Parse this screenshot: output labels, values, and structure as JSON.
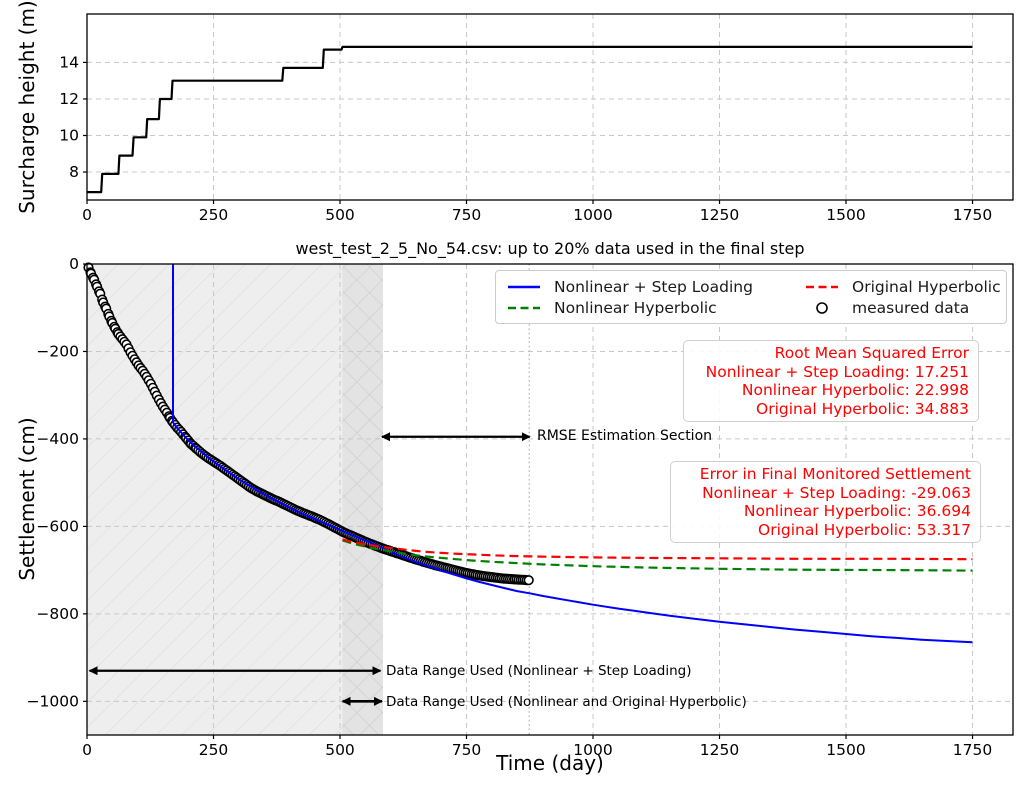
{
  "chart_data": [
    {
      "id": "surcharge",
      "type": "line",
      "title": "",
      "xlabel": "",
      "ylabel": "Surcharge height (m)",
      "xlim": [
        0,
        1830
      ],
      "ylim": [
        6.47,
        16.65
      ],
      "grid": true,
      "xticks": [
        {
          "value": 0,
          "label": "0"
        },
        {
          "value": 250,
          "label": "250"
        },
        {
          "value": 500,
          "label": "500"
        },
        {
          "value": 750,
          "label": "750"
        },
        {
          "value": 1000,
          "label": "1000"
        },
        {
          "value": 1250,
          "label": "1250"
        },
        {
          "value": 1500,
          "label": "1500"
        },
        {
          "value": 1750,
          "label": "1750"
        }
      ],
      "yticks": [
        {
          "value": 8,
          "label": "8"
        },
        {
          "value": 10,
          "label": "10"
        },
        {
          "value": 12,
          "label": "12"
        },
        {
          "value": 14,
          "label": "14"
        }
      ],
      "series": [
        {
          "name": "Surcharge height",
          "type": "line",
          "color": "#000000",
          "dash": "solid",
          "width": 2.2,
          "points": [
            [
              0,
              6.9
            ],
            [
              28,
              6.9
            ],
            [
              30,
              7.9
            ],
            [
              62,
              7.9
            ],
            [
              64,
              8.9
            ],
            [
              90,
              8.9
            ],
            [
              92,
              9.9
            ],
            [
              117,
              9.9
            ],
            [
              119,
              10.9
            ],
            [
              142,
              10.9
            ],
            [
              144,
              12.0
            ],
            [
              167,
              12.0
            ],
            [
              169,
              13.0
            ],
            [
              386,
              13.0
            ],
            [
              388,
              13.7
            ],
            [
              466,
              13.7
            ],
            [
              468,
              14.7
            ],
            [
              503,
              14.7
            ],
            [
              505,
              14.85
            ],
            [
              1750,
              14.85
            ]
          ]
        }
      ]
    },
    {
      "id": "settlement",
      "type": "line+scatter",
      "title": "west_test_2_5_No_54.csv: up to 20% data used in the final step",
      "xlabel": "Time (day)",
      "ylabel": "Settlement (cm)",
      "xlim": [
        0,
        1830
      ],
      "ylim": [
        -1077,
        0
      ],
      "grid": true,
      "xticks": [
        {
          "value": 0,
          "label": "0"
        },
        {
          "value": 250,
          "label": "250"
        },
        {
          "value": 500,
          "label": "500"
        },
        {
          "value": 750,
          "label": "750"
        },
        {
          "value": 1000,
          "label": "1000"
        },
        {
          "value": 1250,
          "label": "1250"
        },
        {
          "value": 1500,
          "label": "1500"
        },
        {
          "value": 1750,
          "label": "1750"
        }
      ],
      "yticks": [
        {
          "value": 0,
          "label": "0"
        },
        {
          "value": -200,
          "label": "−200"
        },
        {
          "value": -400,
          "label": "−400"
        },
        {
          "value": -600,
          "label": "−600"
        },
        {
          "value": -800,
          "label": "−800"
        },
        {
          "value": -1000,
          "label": "−1000"
        }
      ],
      "spans": [
        {
          "x0": 0,
          "x1": 585,
          "fill": "#eeeeee",
          "hatch": "slash"
        },
        {
          "x0": 505,
          "x1": 585,
          "fill": "#e3e3e3",
          "hatch": "cross"
        }
      ],
      "vlines": [
        {
          "x": 874,
          "color": "#b0b0b0",
          "style": "dotted"
        }
      ],
      "legend": [
        {
          "label": "Nonlinear + Step Loading",
          "color": "#0000ff",
          "dash": "solid",
          "marker": "line"
        },
        {
          "label": "Original Hyperbolic",
          "color": "#ff0000",
          "dash": "dashed",
          "marker": "line"
        },
        {
          "label": "Nonlinear Hyperbolic",
          "color": "#008000",
          "dash": "dashed",
          "marker": "line"
        },
        {
          "label": "measured data",
          "color": "#000000",
          "dash": "none",
          "marker": "circle"
        }
      ],
      "series": [
        {
          "name": "measured data",
          "type": "scatter",
          "color": "#000000",
          "fill": "#ffffff",
          "points": [
            [
              3,
              -8
            ],
            [
              8,
              -22
            ],
            [
              14,
              -36
            ],
            [
              20,
              -52
            ],
            [
              26,
              -68
            ],
            [
              32,
              -88
            ],
            [
              38,
              -102
            ],
            [
              44,
              -120
            ],
            [
              50,
              -135
            ],
            [
              56,
              -148
            ],
            [
              62,
              -160
            ],
            [
              70,
              -172
            ],
            [
              78,
              -184
            ],
            [
              86,
              -202
            ],
            [
              94,
              -218
            ],
            [
              102,
              -232
            ],
            [
              110,
              -244
            ],
            [
              118,
              -258
            ],
            [
              126,
              -274
            ],
            [
              134,
              -292
            ],
            [
              142,
              -310
            ],
            [
              150,
              -326
            ],
            [
              158,
              -340
            ],
            [
              164,
              -352
            ],
            [
              170,
              -362
            ],
            [
              178,
              -374
            ],
            [
              186,
              -384
            ],
            [
              196,
              -398
            ],
            [
              206,
              -412
            ],
            [
              216,
              -422
            ],
            [
              228,
              -434
            ],
            [
              240,
              -444
            ],
            [
              252,
              -453
            ],
            [
              264,
              -462
            ],
            [
              276,
              -472
            ],
            [
              288,
              -482
            ],
            [
              300,
              -492
            ],
            [
              312,
              -502
            ],
            [
              324,
              -512
            ],
            [
              336,
              -520
            ],
            [
              350,
              -528
            ],
            [
              364,
              -536
            ],
            [
              380,
              -544
            ],
            [
              396,
              -553
            ],
            [
              412,
              -562
            ],
            [
              428,
              -570
            ],
            [
              444,
              -577
            ],
            [
              460,
              -585
            ],
            [
              476,
              -594
            ],
            [
              492,
              -604
            ],
            [
              508,
              -614
            ],
            [
              524,
              -622
            ],
            [
              540,
              -630
            ],
            [
              556,
              -638
            ],
            [
              572,
              -645
            ],
            [
              588,
              -652
            ],
            [
              604,
              -658
            ],
            [
              620,
              -664
            ],
            [
              640,
              -672
            ],
            [
              660,
              -679
            ],
            [
              680,
              -686
            ],
            [
              700,
              -692
            ],
            [
              720,
              -698
            ],
            [
              740,
              -704
            ],
            [
              760,
              -709
            ],
            [
              780,
              -713
            ],
            [
              800,
              -716
            ],
            [
              820,
              -719
            ],
            [
              845,
              -721
            ],
            [
              873,
              -723
            ]
          ]
        },
        {
          "name": "Nonlinear + Step Loading",
          "type": "line",
          "color": "#0000ff",
          "dash": "solid",
          "width": 2,
          "points": [
            [
              170,
              0
            ],
            [
              170,
              -362
            ],
            [
              176,
              -372
            ],
            [
              186,
              -385
            ],
            [
              196,
              -398
            ],
            [
              210,
              -414
            ],
            [
              225,
              -428
            ],
            [
              240,
              -443
            ],
            [
              255,
              -456
            ],
            [
              270,
              -468
            ],
            [
              285,
              -480
            ],
            [
              300,
              -492
            ],
            [
              320,
              -506
            ],
            [
              340,
              -520
            ],
            [
              360,
              -533
            ],
            [
              380,
              -545
            ],
            [
              400,
              -557
            ],
            [
              420,
              -568
            ],
            [
              440,
              -578
            ],
            [
              460,
              -588
            ],
            [
              480,
              -598
            ],
            [
              500,
              -608
            ],
            [
              520,
              -618
            ],
            [
              540,
              -628
            ],
            [
              560,
              -637
            ],
            [
              580,
              -647
            ],
            [
              600,
              -658
            ],
            [
              625,
              -670
            ],
            [
              650,
              -681
            ],
            [
              675,
              -691
            ],
            [
              700,
              -701
            ],
            [
              725,
              -710
            ],
            [
              750,
              -719
            ],
            [
              775,
              -727
            ],
            [
              800,
              -734
            ],
            [
              825,
              -741
            ],
            [
              850,
              -748
            ],
            [
              875,
              -753
            ],
            [
              900,
              -759
            ],
            [
              925,
              -764
            ],
            [
              950,
              -769
            ],
            [
              975,
              -774
            ],
            [
              1000,
              -779
            ],
            [
              1050,
              -788
            ],
            [
              1100,
              -796
            ],
            [
              1150,
              -804
            ],
            [
              1200,
              -811
            ],
            [
              1250,
              -818
            ],
            [
              1300,
              -824
            ],
            [
              1350,
              -830
            ],
            [
              1400,
              -836
            ],
            [
              1450,
              -841
            ],
            [
              1500,
              -846
            ],
            [
              1550,
              -851
            ],
            [
              1600,
              -855
            ],
            [
              1650,
              -859
            ],
            [
              1700,
              -862
            ],
            [
              1750,
              -865
            ]
          ]
        },
        {
          "name": "Nonlinear Hyperbolic",
          "type": "line",
          "color": "#008000",
          "dash": "dashed",
          "width": 2.2,
          "points": [
            [
              505,
              -632
            ],
            [
              530,
              -641
            ],
            [
              560,
              -649
            ],
            [
              590,
              -655
            ],
            [
              620,
              -661
            ],
            [
              650,
              -666
            ],
            [
              680,
              -670
            ],
            [
              720,
              -674
            ],
            [
              760,
              -678
            ],
            [
              800,
              -681
            ],
            [
              850,
              -684
            ],
            [
              900,
              -687
            ],
            [
              1000,
              -691
            ],
            [
              1100,
              -694
            ],
            [
              1250,
              -697
            ],
            [
              1400,
              -699
            ],
            [
              1600,
              -700
            ],
            [
              1750,
              -701
            ]
          ]
        },
        {
          "name": "Original Hyperbolic",
          "type": "line",
          "color": "#ff0000",
          "dash": "dashed",
          "width": 2.2,
          "points": [
            [
              505,
              -630
            ],
            [
              530,
              -637
            ],
            [
              560,
              -643
            ],
            [
              590,
              -648
            ],
            [
              620,
              -652
            ],
            [
              650,
              -656
            ],
            [
              680,
              -659
            ],
            [
              720,
              -662
            ],
            [
              760,
              -664
            ],
            [
              800,
              -666
            ],
            [
              850,
              -668
            ],
            [
              900,
              -669
            ],
            [
              1000,
              -671
            ],
            [
              1100,
              -672
            ],
            [
              1250,
              -673
            ],
            [
              1400,
              -674
            ],
            [
              1600,
              -674
            ],
            [
              1750,
              -675
            ]
          ]
        }
      ],
      "arrows": [
        {
          "x0": 5,
          "x1": 580,
          "y": -930,
          "width": 2.2,
          "label": "Data Range Used (Nonlinear + Step Loading)"
        },
        {
          "x0": 505,
          "x1": 583,
          "y": -1000,
          "width": 2.6,
          "label": "Data Range Used (Nonlinear and Original Hyperbolic)"
        },
        {
          "x0": 583,
          "x1": 875,
          "y": -395,
          "width": 2.2,
          "label": "RMSE Estimation Section"
        }
      ],
      "annotations": {
        "rmse": {
          "color": "#ff0000",
          "lines": [
            "Root Mean Squared Error",
            "Nonlinear + Step Loading: 17.251",
            "Nonlinear Hyperbolic: 22.998",
            "Original Hyperbolic: 34.883"
          ]
        },
        "final_error": {
          "color": "#ff0000",
          "lines": [
            "Error in Final Monitored Settlement",
            "Nonlinear + Step Loading: -29.063",
            "Nonlinear Hyperbolic: 36.694",
            "Original Hyperbolic: 53.317"
          ]
        }
      }
    }
  ]
}
